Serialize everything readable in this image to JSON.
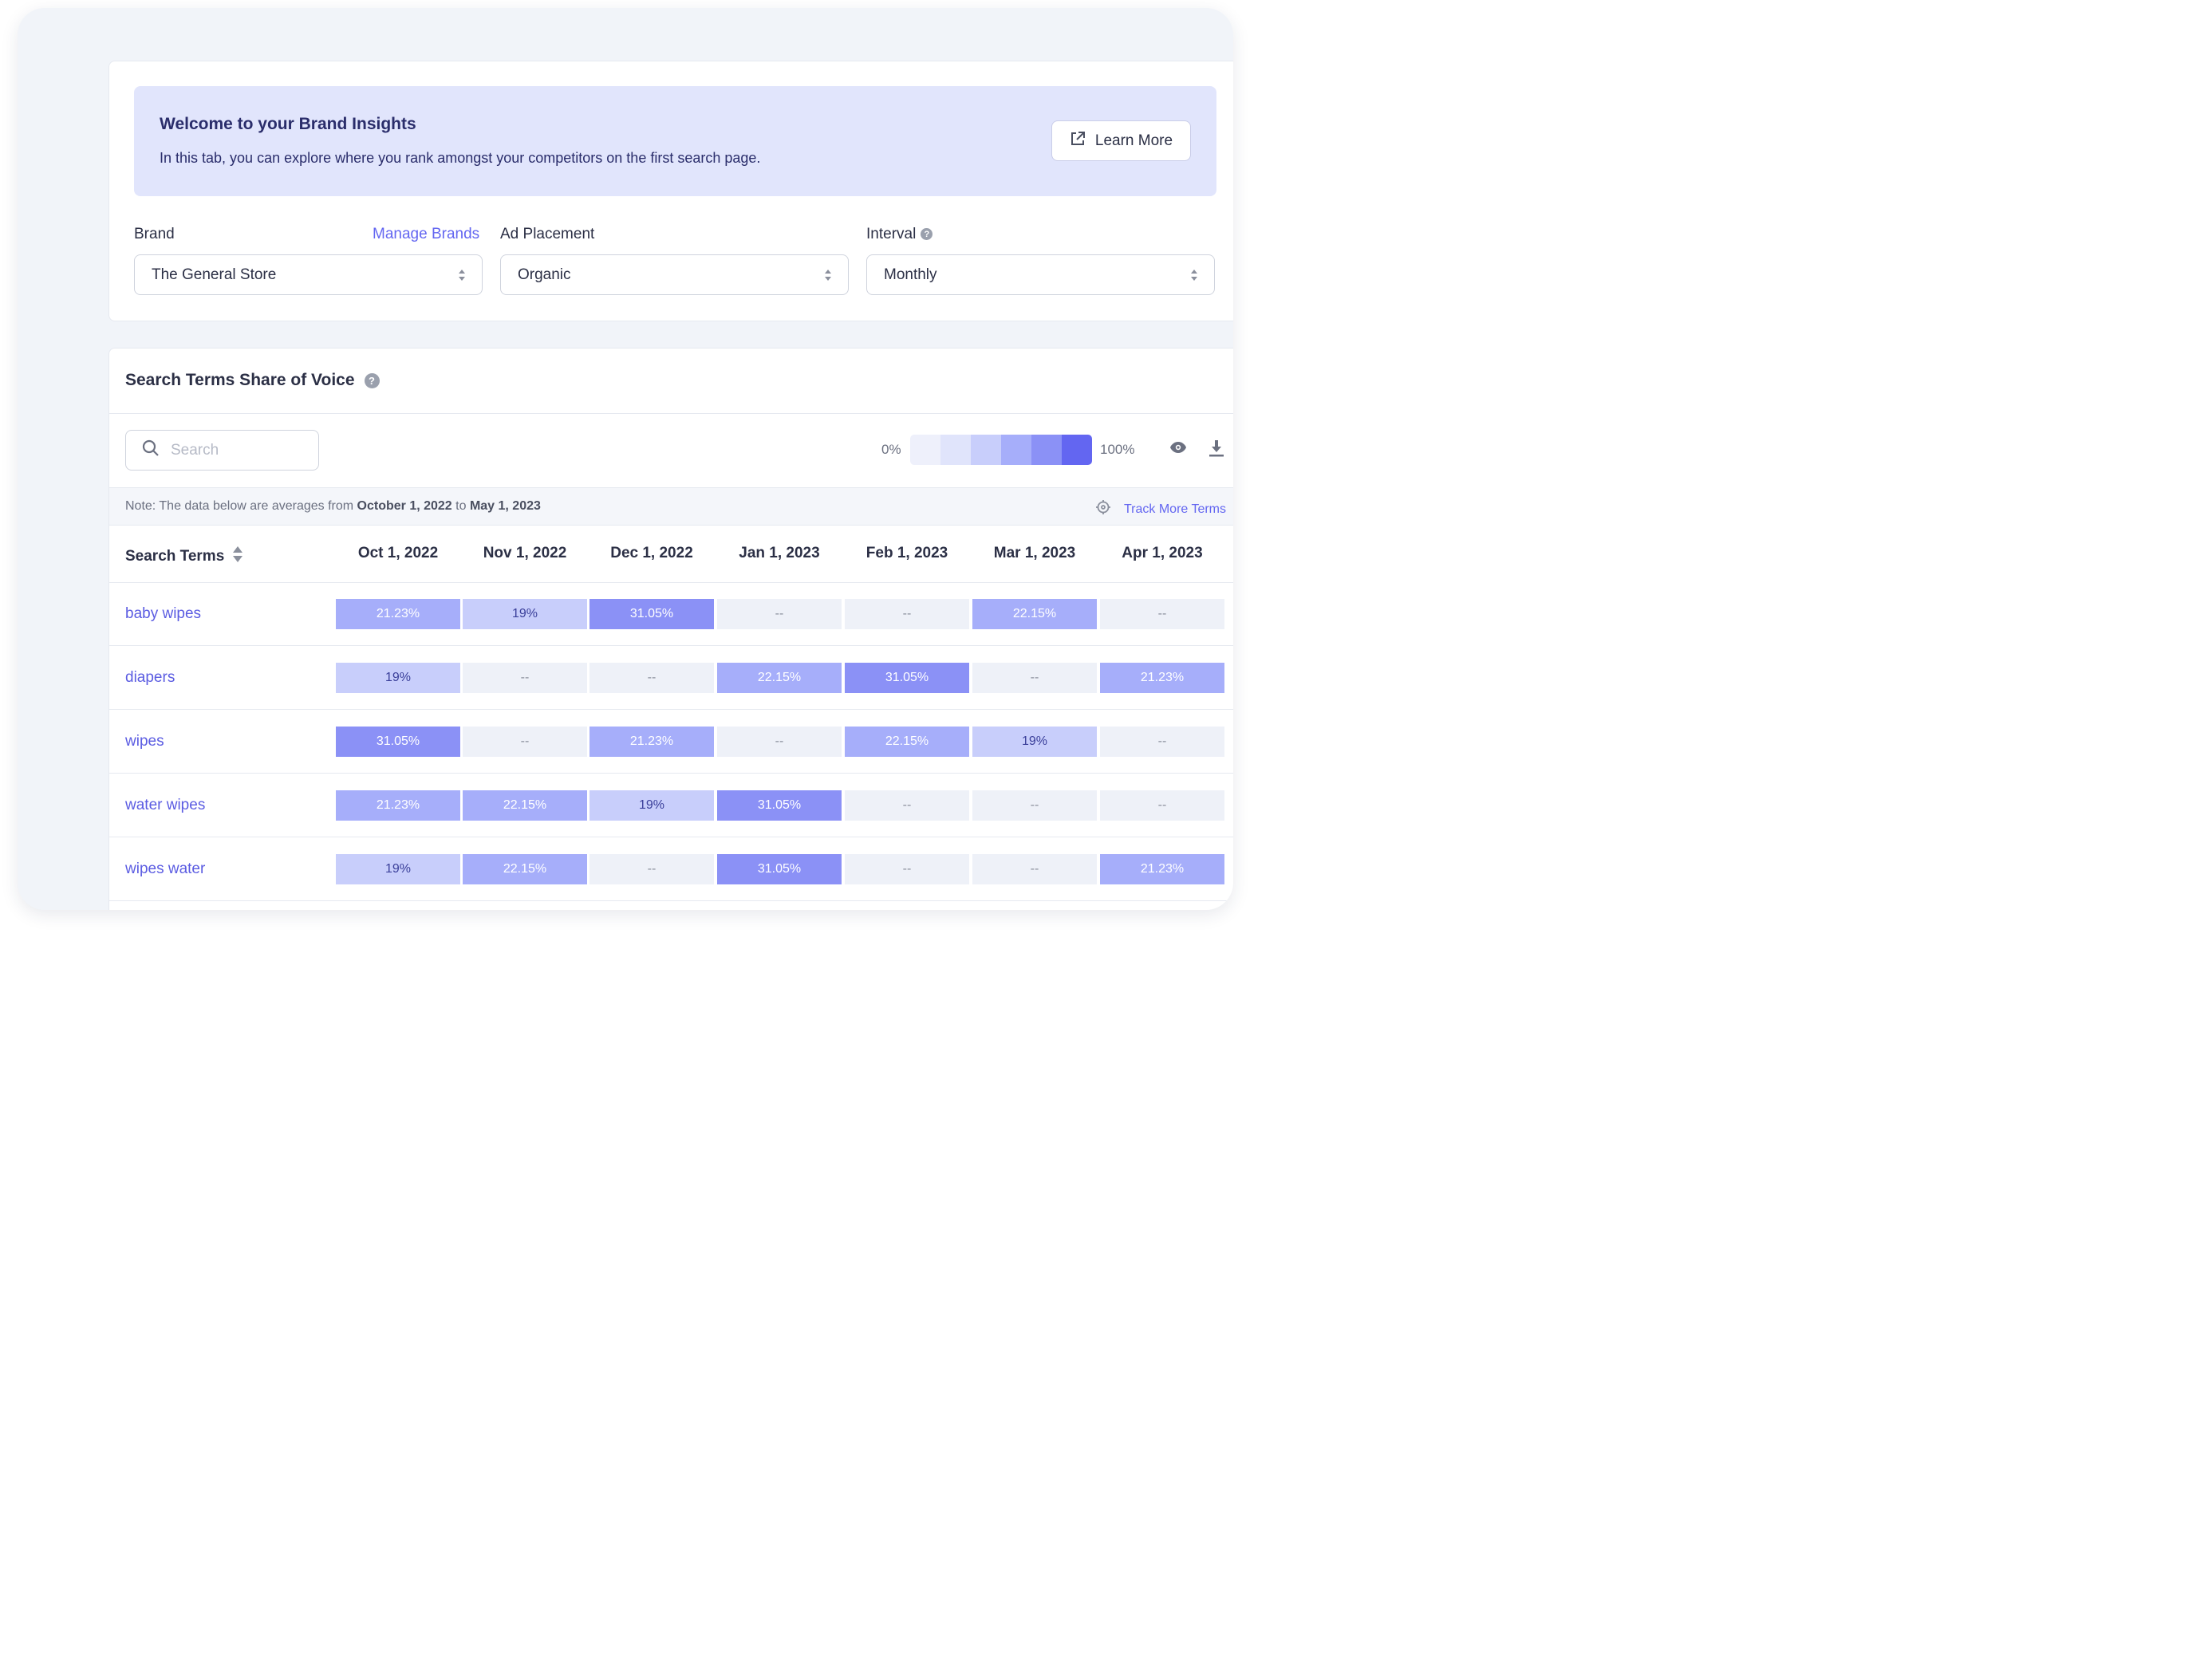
{
  "banner": {
    "title": "Welcome to your Brand Insights",
    "text": "In this tab, you can explore where you rank amongst your competitors on the first search page.",
    "learn_more": "Learn More"
  },
  "filters": {
    "brand_label": "Brand",
    "manage_brands": "Manage Brands",
    "brand_value": "The General Store",
    "placement_label": "Ad Placement",
    "placement_value": "Organic",
    "interval_label": "Interval",
    "interval_value": "Monthly"
  },
  "section": {
    "title": "Search Terms Share of Voice",
    "search_placeholder": "Search",
    "scale_min": "0%",
    "scale_max": "100%",
    "note_prefix": "Note: The data below are averages from ",
    "note_start": "October 1, 2022",
    "note_mid": " to ",
    "note_end": "May 1, 2023",
    "track_more": "Track More Terms"
  },
  "colors": {
    "accent": "#6366f1",
    "scale": [
      "#eef0fb",
      "#e0e4fb",
      "#c8cefb",
      "#a6aefa",
      "#8b91f6",
      "#6366f1"
    ],
    "empty_cell": "#eef1f8"
  },
  "table": {
    "first_header": "Search Terms",
    "columns": [
      "Oct 1, 2022",
      "Nov 1, 2022",
      "Dec 1, 2022",
      "Jan 1, 2023",
      "Feb 1, 2023",
      "Mar 1, 2023",
      "Apr 1, 2023"
    ],
    "rows": [
      {
        "term": "baby wipes",
        "cells": [
          "21.23%",
          "19%",
          "31.05%",
          "--",
          "--",
          "22.15%",
          "--"
        ]
      },
      {
        "term": "diapers",
        "cells": [
          "19%",
          "--",
          "--",
          "22.15%",
          "31.05%",
          "--",
          "21.23%"
        ]
      },
      {
        "term": "wipes",
        "cells": [
          "31.05%",
          "--",
          "21.23%",
          "--",
          "22.15%",
          "19%",
          "--"
        ]
      },
      {
        "term": "water wipes",
        "cells": [
          "21.23%",
          "22.15%",
          "19%",
          "31.05%",
          "--",
          "--",
          "--"
        ]
      },
      {
        "term": "wipes water",
        "cells": [
          "19%",
          "22.15%",
          "--",
          "31.05%",
          "--",
          "--",
          "21.23%"
        ]
      }
    ]
  }
}
